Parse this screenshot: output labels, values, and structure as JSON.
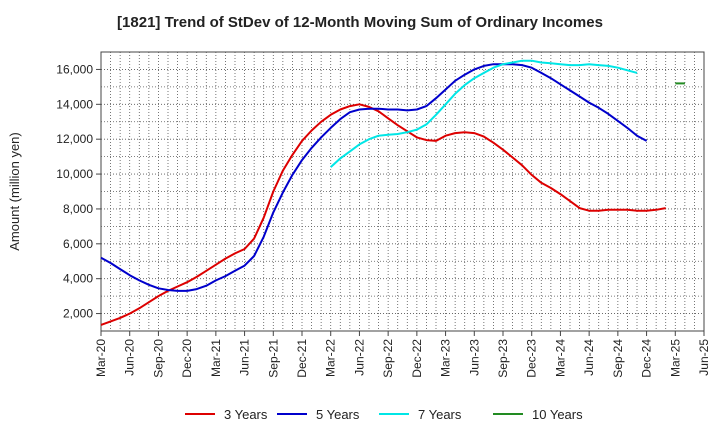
{
  "chart_data": {
    "type": "line",
    "title": "[1821]  Trend of StDev of 12-Month Moving Sum of Ordinary Incomes",
    "xlabel": "",
    "ylabel": "Amount (million yen)",
    "ylim": [
      1000,
      17000
    ],
    "yticks": [
      2000,
      4000,
      6000,
      8000,
      10000,
      12000,
      14000,
      16000
    ],
    "ytick_labels": [
      "2,000",
      "4,000",
      "6,000",
      "8,000",
      "10,000",
      "12,000",
      "14,000",
      "16,000"
    ],
    "x_categories": [
      "Mar-20",
      "Jun-20",
      "Sep-20",
      "Dec-20",
      "Mar-21",
      "Jun-21",
      "Sep-21",
      "Dec-21",
      "Mar-22",
      "Jun-22",
      "Sep-22",
      "Dec-22",
      "Mar-23",
      "Jun-23",
      "Sep-23",
      "Dec-23",
      "Mar-24",
      "Jun-24",
      "Sep-24",
      "Dec-24",
      "Mar-25",
      "Jun-25"
    ],
    "grid": true,
    "legend_position": "bottom",
    "series": [
      {
        "name": "3 Years",
        "color": "#dd0000",
        "start_index": 0,
        "values": [
          1350,
          1550,
          1750,
          2000,
          2300,
          2650,
          3000,
          3300,
          3550,
          3800,
          4100,
          4450,
          4800,
          5150,
          5450,
          5700,
          6300,
          7500,
          9000,
          10200,
          11100,
          11900,
          12500,
          13000,
          13400,
          13700,
          13900,
          14000,
          13850,
          13600,
          13200,
          12800,
          12450,
          12100,
          11950,
          11900,
          12200,
          12350,
          12400,
          12350,
          12150,
          11800,
          11400,
          10950,
          10500,
          9950,
          9500,
          9200,
          8850,
          8450,
          8050,
          7900,
          7900,
          7950,
          7950,
          7950,
          7900,
          7900,
          7950,
          8050
        ]
      },
      {
        "name": "5 Years",
        "color": "#0000cc",
        "start_index": 0,
        "values": [
          5200,
          4900,
          4550,
          4200,
          3900,
          3650,
          3450,
          3350,
          3300,
          3300,
          3400,
          3600,
          3900,
          4150,
          4450,
          4750,
          5300,
          6400,
          7800,
          8950,
          9950,
          10800,
          11500,
          12100,
          12650,
          13150,
          13550,
          13700,
          13750,
          13750,
          13700,
          13700,
          13650,
          13700,
          13900,
          14350,
          14850,
          15350,
          15700,
          16000,
          16200,
          16300,
          16300,
          16300,
          16250,
          16100,
          15800,
          15500,
          15150,
          14800,
          14450,
          14100,
          13800,
          13450,
          13050,
          12650,
          12200,
          11900
        ]
      },
      {
        "name": "7 Years",
        "color": "#00e6e6",
        "start_index": 24,
        "values": [
          10400,
          10900,
          11300,
          11700,
          12000,
          12200,
          12250,
          12300,
          12400,
          12550,
          12850,
          13400,
          14000,
          14600,
          15100,
          15500,
          15800,
          16100,
          16300,
          16400,
          16500,
          16500,
          16400,
          16350,
          16300,
          16250,
          16250,
          16300,
          16250,
          16200,
          16100,
          15950,
          15800
        ]
      },
      {
        "name": "10 Years",
        "color": "#228b22",
        "start_index": 60,
        "values": [
          15200,
          15200
        ]
      }
    ]
  }
}
